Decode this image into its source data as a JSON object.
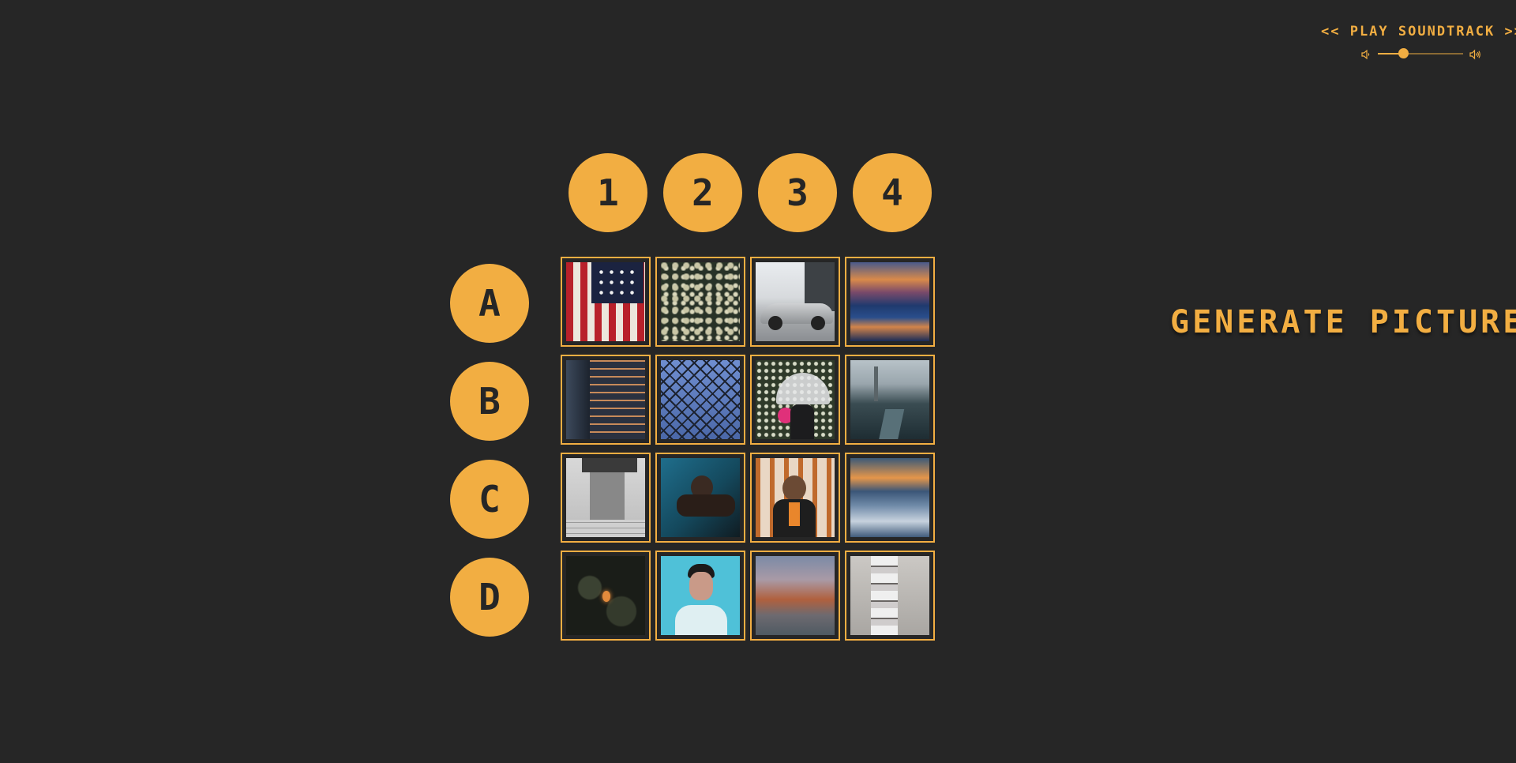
{
  "soundtrack": {
    "play_label": "<< PLAY SOUNDTRACK >>",
    "volume_level": 0.3,
    "icons": [
      "volume-low-icon",
      "volume-high-icon"
    ]
  },
  "columns": [
    "1",
    "2",
    "3",
    "4"
  ],
  "rows": [
    "A",
    "B",
    "C",
    "D"
  ],
  "generate_label": "GENERATE PICTURE",
  "colors": {
    "accent": "#f2ae42",
    "background": "#262626"
  },
  "tiles": [
    [
      "american-flag",
      "pine-branches",
      "silver-sports-car",
      "sunset-water-blur"
    ],
    [
      "lit-building",
      "chain-link-fence",
      "woman-umbrella-flowers",
      "city-river-aerial"
    ],
    [
      "white-doorway",
      "man-by-pool",
      "woman-orange-railings",
      "sunset-ocean-waves"
    ],
    [
      "dark-lightbulb-leaves",
      "man-blue-background",
      "desert-rock-formations",
      "white-stair-balconies"
    ]
  ]
}
